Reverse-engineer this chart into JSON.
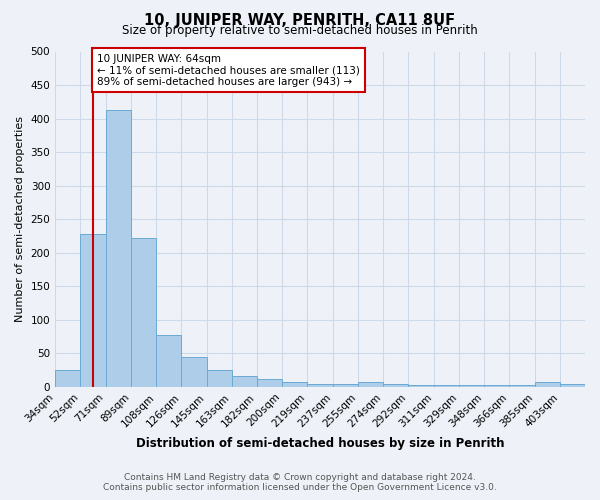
{
  "title": "10, JUNIPER WAY, PENRITH, CA11 8UF",
  "subtitle": "Size of property relative to semi-detached houses in Penrith",
  "xlabel": "Distribution of semi-detached houses by size in Penrith",
  "ylabel": "Number of semi-detached properties",
  "footer_line1": "Contains HM Land Registry data © Crown copyright and database right 2024.",
  "footer_line2": "Contains public sector information licensed under the Open Government Licence v3.0.",
  "annotation_title": "10 JUNIPER WAY: 64sqm",
  "annotation_line2": "← 11% of semi-detached houses are smaller (113)",
  "annotation_line3": "89% of semi-detached houses are larger (943) →",
  "categories": [
    "34sqm",
    "52sqm",
    "71sqm",
    "89sqm",
    "108sqm",
    "126sqm",
    "145sqm",
    "163sqm",
    "182sqm",
    "200sqm",
    "219sqm",
    "237sqm",
    "255sqm",
    "274sqm",
    "292sqm",
    "311sqm",
    "329sqm",
    "348sqm",
    "366sqm",
    "385sqm",
    "403sqm"
  ],
  "bin_edges": [
    0,
    1,
    2,
    3,
    4,
    5,
    6,
    7,
    8,
    9,
    10,
    11,
    12,
    13,
    14,
    15,
    16,
    17,
    18,
    19,
    20,
    21
  ],
  "values": [
    25,
    228,
    413,
    222,
    77,
    45,
    25,
    17,
    12,
    8,
    5,
    5,
    8,
    5,
    3,
    3,
    3,
    3,
    3,
    8,
    5
  ],
  "bar_color": "#aecde8",
  "bar_edge_color": "#6aaad4",
  "red_line_x": 1.5,
  "red_line_color": "#cc0000",
  "annotation_box_edge_color": "#cc0000",
  "annotation_box_face_color": "#ffffff",
  "grid_color": "#cdd8e8",
  "background_color": "#eef2f8",
  "ylim": [
    0,
    500
  ],
  "yticks": [
    0,
    50,
    100,
    150,
    200,
    250,
    300,
    350,
    400,
    450,
    500
  ],
  "title_fontsize": 10.5,
  "subtitle_fontsize": 8.5,
  "xlabel_fontsize": 8.5,
  "ylabel_fontsize": 8,
  "tick_fontsize": 7.5,
  "footer_fontsize": 6.5,
  "annotation_fontsize": 7.5
}
